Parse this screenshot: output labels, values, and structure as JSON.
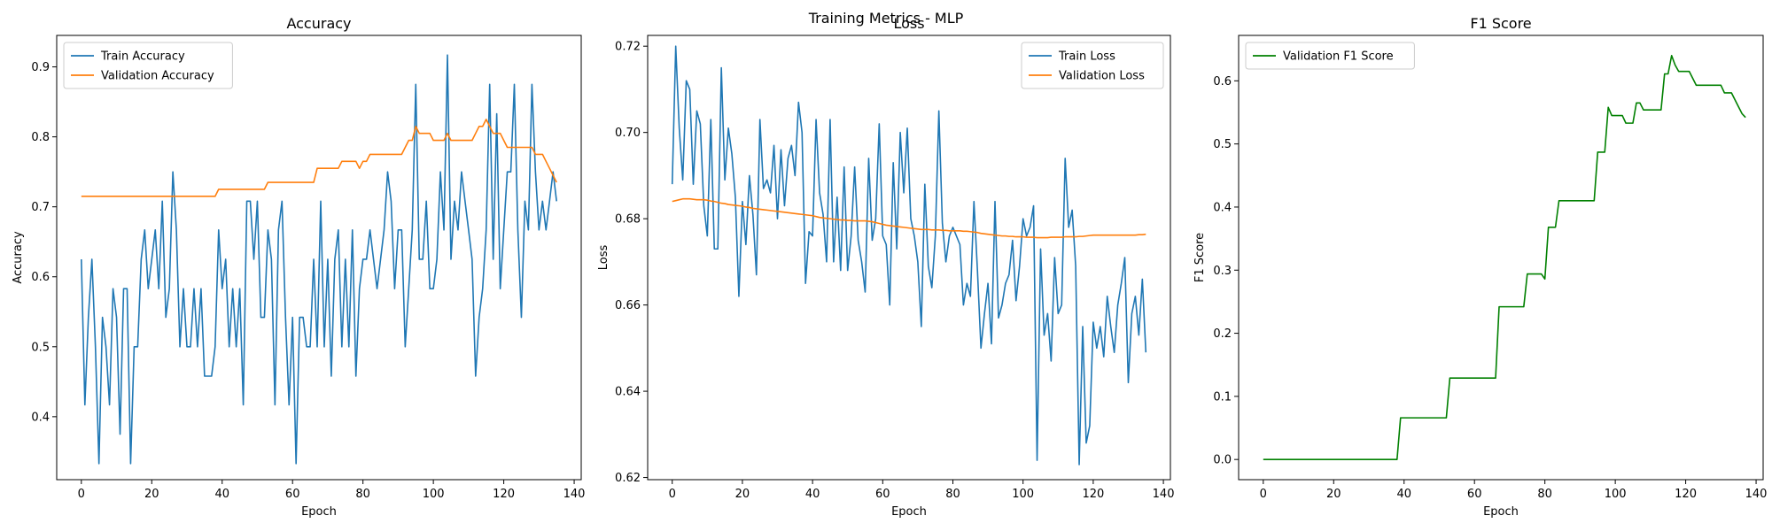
{
  "figure": {
    "suptitle": "Training Metrics - MLP"
  },
  "colors": {
    "blue": "#1f77b4",
    "orange": "#ff7f0e",
    "green": "#008000"
  },
  "chart_data": [
    {
      "type": "line",
      "title": "Accuracy",
      "xlabel": "Epoch",
      "ylabel": "Accuracy",
      "xlim": [
        -7,
        142
      ],
      "ylim": [
        0.31,
        0.945
      ],
      "xticks": [
        0,
        20,
        40,
        60,
        80,
        100,
        120,
        140
      ],
      "yticks": [
        0.4,
        0.5,
        0.6,
        0.7,
        0.8,
        0.9
      ],
      "tick_decimals": 1,
      "legend": "top-left",
      "series": [
        {
          "name": "Train Accuracy",
          "color": "#1f77b4",
          "x_start": 0,
          "x_step": 1,
          "values": [
            0.625,
            0.417,
            0.542,
            0.625,
            0.5,
            0.333,
            0.542,
            0.5,
            0.417,
            0.583,
            0.542,
            0.375,
            0.583,
            0.583,
            0.333,
            0.5,
            0.5,
            0.625,
            0.667,
            0.583,
            0.625,
            0.667,
            0.583,
            0.708,
            0.542,
            0.583,
            0.75,
            0.667,
            0.5,
            0.583,
            0.5,
            0.5,
            0.583,
            0.5,
            0.583,
            0.458,
            0.458,
            0.458,
            0.5,
            0.667,
            0.583,
            0.625,
            0.5,
            0.583,
            0.5,
            0.583,
            0.417,
            0.708,
            0.708,
            0.625,
            0.708,
            0.542,
            0.542,
            0.667,
            0.625,
            0.417,
            0.667,
            0.708,
            0.542,
            0.417,
            0.542,
            0.333,
            0.542,
            0.542,
            0.5,
            0.5,
            0.625,
            0.5,
            0.708,
            0.5,
            0.625,
            0.458,
            0.625,
            0.667,
            0.5,
            0.625,
            0.5,
            0.667,
            0.458,
            0.583,
            0.625,
            0.625,
            0.667,
            0.625,
            0.583,
            0.625,
            0.667,
            0.75,
            0.708,
            0.583,
            0.667,
            0.667,
            0.5,
            0.583,
            0.667,
            0.875,
            0.625,
            0.625,
            0.708,
            0.583,
            0.583,
            0.625,
            0.75,
            0.667,
            0.917,
            0.625,
            0.708,
            0.667,
            0.75,
            0.708,
            0.667,
            0.625,
            0.458,
            0.542,
            0.583,
            0.667,
            0.875,
            0.625,
            0.833,
            0.583,
            0.667,
            0.75,
            0.75,
            0.875,
            0.667,
            0.542,
            0.708,
            0.667,
            0.875,
            0.75,
            0.667,
            0.708,
            0.667,
            0.708,
            0.75,
            0.708
          ]
        },
        {
          "name": "Validation Accuracy",
          "color": "#ff7f0e",
          "x_start": 0,
          "x_step": 1,
          "values": [
            0.715,
            0.715,
            0.715,
            0.715,
            0.715,
            0.715,
            0.715,
            0.715,
            0.715,
            0.715,
            0.715,
            0.715,
            0.715,
            0.715,
            0.715,
            0.715,
            0.715,
            0.715,
            0.715,
            0.715,
            0.715,
            0.715,
            0.715,
            0.715,
            0.715,
            0.715,
            0.715,
            0.715,
            0.715,
            0.715,
            0.715,
            0.715,
            0.715,
            0.715,
            0.715,
            0.715,
            0.715,
            0.715,
            0.715,
            0.725,
            0.725,
            0.725,
            0.725,
            0.725,
            0.725,
            0.725,
            0.725,
            0.725,
            0.725,
            0.725,
            0.725,
            0.725,
            0.725,
            0.735,
            0.735,
            0.735,
            0.735,
            0.735,
            0.735,
            0.735,
            0.735,
            0.735,
            0.735,
            0.735,
            0.735,
            0.735,
            0.735,
            0.755,
            0.755,
            0.755,
            0.755,
            0.755,
            0.755,
            0.755,
            0.765,
            0.765,
            0.765,
            0.765,
            0.765,
            0.755,
            0.765,
            0.765,
            0.775,
            0.775,
            0.775,
            0.775,
            0.775,
            0.775,
            0.775,
            0.775,
            0.775,
            0.775,
            0.785,
            0.795,
            0.795,
            0.815,
            0.805,
            0.805,
            0.805,
            0.805,
            0.795,
            0.795,
            0.795,
            0.795,
            0.805,
            0.795,
            0.795,
            0.795,
            0.795,
            0.795,
            0.795,
            0.795,
            0.805,
            0.815,
            0.815,
            0.825,
            0.815,
            0.805,
            0.805,
            0.805,
            0.795,
            0.785,
            0.785,
            0.785,
            0.785,
            0.785,
            0.785,
            0.785,
            0.785,
            0.775,
            0.775,
            0.775,
            0.765,
            0.755,
            0.745,
            0.735
          ]
        }
      ]
    },
    {
      "type": "line",
      "title": "Loss",
      "xlabel": "Epoch",
      "ylabel": "Loss",
      "xlim": [
        -7,
        142
      ],
      "ylim": [
        0.6195,
        0.7225
      ],
      "xticks": [
        0,
        20,
        40,
        60,
        80,
        100,
        120,
        140
      ],
      "yticks": [
        0.62,
        0.64,
        0.66,
        0.68,
        0.7,
        0.72
      ],
      "tick_decimals": 2,
      "legend": "top-right",
      "series": [
        {
          "name": "Train Loss",
          "color": "#1f77b4",
          "x_start": 0,
          "x_step": 1,
          "values": [
            0.688,
            0.72,
            0.701,
            0.689,
            0.712,
            0.71,
            0.688,
            0.705,
            0.702,
            0.683,
            0.676,
            0.703,
            0.673,
            0.673,
            0.715,
            0.689,
            0.701,
            0.695,
            0.685,
            0.662,
            0.684,
            0.674,
            0.69,
            0.681,
            0.667,
            0.703,
            0.687,
            0.689,
            0.686,
            0.697,
            0.68,
            0.696,
            0.683,
            0.694,
            0.697,
            0.69,
            0.707,
            0.7,
            0.665,
            0.677,
            0.676,
            0.703,
            0.686,
            0.681,
            0.67,
            0.703,
            0.67,
            0.685,
            0.668,
            0.692,
            0.668,
            0.676,
            0.692,
            0.675,
            0.67,
            0.663,
            0.694,
            0.675,
            0.68,
            0.702,
            0.676,
            0.674,
            0.66,
            0.693,
            0.673,
            0.7,
            0.686,
            0.701,
            0.68,
            0.676,
            0.67,
            0.655,
            0.688,
            0.669,
            0.664,
            0.676,
            0.705,
            0.679,
            0.67,
            0.676,
            0.678,
            0.676,
            0.674,
            0.66,
            0.665,
            0.662,
            0.684,
            0.668,
            0.65,
            0.658,
            0.665,
            0.651,
            0.684,
            0.657,
            0.66,
            0.665,
            0.667,
            0.675,
            0.661,
            0.669,
            0.68,
            0.676,
            0.678,
            0.683,
            0.624,
            0.673,
            0.653,
            0.658,
            0.647,
            0.671,
            0.658,
            0.66,
            0.694,
            0.678,
            0.682,
            0.669,
            0.623,
            0.655,
            0.628,
            0.632,
            0.656,
            0.65,
            0.655,
            0.648,
            0.662,
            0.655,
            0.649,
            0.66,
            0.665,
            0.671,
            0.642,
            0.658,
            0.662,
            0.653,
            0.666,
            0.649
          ]
        },
        {
          "name": "Validation Loss",
          "color": "#ff7f0e",
          "x_start": 0,
          "x_step": 1,
          "values": [
            0.684,
            0.6842,
            0.6844,
            0.6846,
            0.6846,
            0.6846,
            0.6845,
            0.6844,
            0.6844,
            0.6844,
            0.6843,
            0.6841,
            0.684,
            0.6838,
            0.6836,
            0.6835,
            0.6833,
            0.6832,
            0.6831,
            0.683,
            0.6829,
            0.6827,
            0.6826,
            0.6824,
            0.6823,
            0.6822,
            0.6821,
            0.682,
            0.6819,
            0.6818,
            0.6817,
            0.6816,
            0.6815,
            0.6814,
            0.6813,
            0.6812,
            0.6811,
            0.681,
            0.6809,
            0.6808,
            0.6807,
            0.6805,
            0.6803,
            0.6802,
            0.6801,
            0.68,
            0.6799,
            0.6798,
            0.6797,
            0.6797,
            0.6796,
            0.6796,
            0.6795,
            0.6795,
            0.6795,
            0.6795,
            0.6794,
            0.6793,
            0.6791,
            0.6789,
            0.6787,
            0.6785,
            0.6784,
            0.6783,
            0.6782,
            0.6781,
            0.678,
            0.6779,
            0.6778,
            0.6777,
            0.6776,
            0.6775,
            0.6775,
            0.6775,
            0.6774,
            0.6774,
            0.6774,
            0.6773,
            0.6773,
            0.6772,
            0.6772,
            0.6772,
            0.6772,
            0.6771,
            0.6771,
            0.677,
            0.6769,
            0.6768,
            0.6766,
            0.6765,
            0.6764,
            0.6763,
            0.6762,
            0.6761,
            0.676,
            0.676,
            0.6759,
            0.6759,
            0.6758,
            0.6758,
            0.6758,
            0.6757,
            0.6757,
            0.6757,
            0.6756,
            0.6756,
            0.6756,
            0.6756,
            0.6757,
            0.6757,
            0.6757,
            0.6757,
            0.6758,
            0.6758,
            0.6758,
            0.6758,
            0.6759,
            0.6759,
            0.676,
            0.6761,
            0.6762,
            0.6762,
            0.6762,
            0.6762,
            0.6762,
            0.6762,
            0.6762,
            0.6762,
            0.6762,
            0.6762,
            0.6762,
            0.6762,
            0.6762,
            0.6763,
            0.6763,
            0.6764
          ]
        }
      ]
    },
    {
      "type": "line",
      "title": "F1 Score",
      "xlabel": "Epoch",
      "ylabel": "F1 Score",
      "xlim": [
        -7,
        142
      ],
      "ylim": [
        -0.032,
        0.672
      ],
      "xticks": [
        0,
        20,
        40,
        60,
        80,
        100,
        120,
        140
      ],
      "yticks": [
        0.0,
        0.1,
        0.2,
        0.3,
        0.4,
        0.5,
        0.6
      ],
      "tick_decimals": 1,
      "legend": "top-left",
      "series": [
        {
          "name": "Validation F1 Score",
          "color": "#008000",
          "x_start": 0,
          "x_step": 1,
          "values": [
            0,
            0,
            0,
            0,
            0,
            0,
            0,
            0,
            0,
            0,
            0,
            0,
            0,
            0,
            0,
            0,
            0,
            0,
            0,
            0,
            0,
            0,
            0,
            0,
            0,
            0,
            0,
            0,
            0,
            0,
            0,
            0,
            0,
            0,
            0,
            0,
            0,
            0,
            0,
            0.066,
            0.066,
            0.066,
            0.066,
            0.066,
            0.066,
            0.066,
            0.066,
            0.066,
            0.066,
            0.066,
            0.066,
            0.066,
            0.066,
            0.129,
            0.129,
            0.129,
            0.129,
            0.129,
            0.129,
            0.129,
            0.129,
            0.129,
            0.129,
            0.129,
            0.129,
            0.129,
            0.129,
            0.242,
            0.242,
            0.242,
            0.242,
            0.242,
            0.242,
            0.242,
            0.242,
            0.294,
            0.294,
            0.294,
            0.294,
            0.294,
            0.286,
            0.368,
            0.368,
            0.368,
            0.41,
            0.41,
            0.41,
            0.41,
            0.41,
            0.41,
            0.41,
            0.41,
            0.41,
            0.41,
            0.41,
            0.487,
            0.487,
            0.487,
            0.558,
            0.545,
            0.545,
            0.545,
            0.545,
            0.533,
            0.533,
            0.533,
            0.565,
            0.565,
            0.554,
            0.554,
            0.554,
            0.554,
            0.554,
            0.554,
            0.611,
            0.611,
            0.64,
            0.625,
            0.615,
            0.615,
            0.615,
            0.615,
            0.604,
            0.593,
            0.593,
            0.593,
            0.593,
            0.593,
            0.593,
            0.593,
            0.593,
            0.581,
            0.581,
            0.581,
            0.57,
            0.559,
            0.548,
            0.542
          ]
        }
      ]
    }
  ]
}
